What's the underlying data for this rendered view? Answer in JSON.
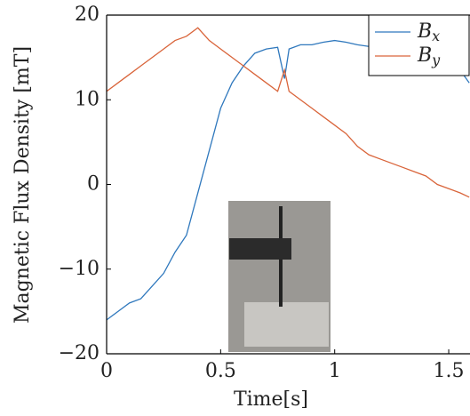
{
  "chart_data": {
    "type": "line",
    "x_label": "Time[s]",
    "y_label": "Magnetic Flux Density [mT]",
    "x": [
      0,
      0.05,
      0.1,
      0.15,
      0.2,
      0.25,
      0.3,
      0.35,
      0.4,
      0.45,
      0.5,
      0.55,
      0.6,
      0.65,
      0.7,
      0.75,
      0.78,
      0.8,
      0.85,
      0.9,
      0.95,
      1,
      1.05,
      1.1,
      1.15,
      1.2,
      1.25,
      1.3,
      1.35,
      1.4,
      1.45,
      1.5,
      1.55,
      1.59
    ],
    "series": [
      {
        "name": "Bx",
        "color": "#2f78bd",
        "values": [
          -16,
          -15,
          -14,
          -13.5,
          -12,
          -10.5,
          -8,
          -6,
          -1,
          4,
          9,
          12,
          14,
          15.5,
          16,
          16.2,
          12.5,
          16,
          16.5,
          16.5,
          16.8,
          17,
          16.8,
          16.5,
          16.3,
          16.5,
          16.2,
          16,
          15.8,
          15.5,
          15,
          14.5,
          13.5,
          12
        ]
      },
      {
        "name": "By",
        "color": "#d9643a",
        "values": [
          11,
          12,
          13,
          14,
          15,
          16,
          17,
          17.5,
          18.5,
          17,
          16,
          15,
          14,
          13,
          12,
          11,
          13.5,
          11,
          10,
          9,
          8,
          7,
          6,
          4.5,
          3.5,
          3,
          2.5,
          2,
          1.5,
          1,
          0,
          -0.5,
          -1,
          -1.5
        ]
      }
    ],
    "xlim": [
      0,
      1.59
    ],
    "xticks": [
      0,
      0.5,
      1,
      1.5
    ],
    "ylim": [
      -20,
      20
    ],
    "yticks": [
      {
        "value": -20,
        "label": "−20"
      },
      {
        "value": -10,
        "label": "−10"
      },
      0,
      10,
      20
    ],
    "legend": "top-right"
  }
}
